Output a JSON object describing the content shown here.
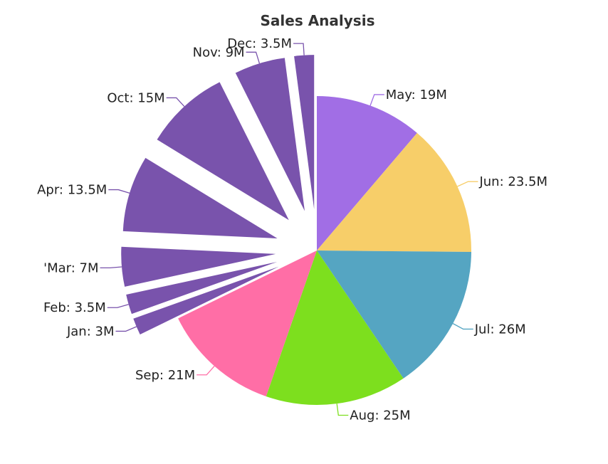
{
  "chart_data": {
    "type": "pie",
    "title": "Sales Analysis",
    "unit_suffix": "M",
    "start_angle_deg": 0,
    "categories": [
      "May",
      "Jun",
      "Jul",
      "Aug",
      "Sep",
      "Jan",
      "Feb",
      "'Mar",
      "Apr",
      "Oct",
      "Nov",
      "Dec"
    ],
    "values": [
      19,
      23.5,
      26,
      25,
      21,
      3,
      3.5,
      7,
      13.5,
      15,
      9,
      3.5
    ],
    "labels": [
      "May: 19M",
      "Jun: 23.5M",
      "Jul: 26M",
      "Aug: 25M",
      "Sep: 21M",
      "Jan: 3M",
      "Feb: 3.5M",
      "'Mar: 7M",
      "Apr: 13.5M",
      "Oct: 15M",
      "Nov: 9M",
      "Dec: 3.5M"
    ],
    "colors": [
      "#A16EE5",
      "#F7CE69",
      "#55A5C2",
      "#7DDF1E",
      "#FF6EA6",
      "#7953AC",
      "#7953AC",
      "#7953AC",
      "#7953AC",
      "#7953AC",
      "#7953AC",
      "#7953AC"
    ],
    "exploded": [
      false,
      false,
      false,
      false,
      false,
      true,
      true,
      true,
      true,
      true,
      true,
      true
    ],
    "legend": "none"
  }
}
